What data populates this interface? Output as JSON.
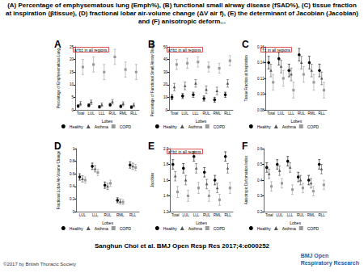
{
  "title": "(A) Percentage of emphysematous lung (Emph%), (B) functional small airway disease (fSAD%), (C) tissue fraction at inspiration (βtissue), (D) fractional lobar air-volume change (ΔV air f), (E) the determinant of Jacobian (Jacobian) and (F) anisotropic deform...",
  "citation": "Sanghun Choi et al. BMJ Open Resp Res 2017;4:e000252",
  "copyright": "©2017 by British Thoracic Society",
  "journal": [
    "BMJ Open",
    "Respiratory Research"
  ],
  "chart_data": [
    {
      "type": "scatter",
      "title": "A",
      "annotation": "a†b‡ in all regions",
      "x_label": "Lobes",
      "y_label": "Percentage of Emphysematous Lung",
      "categories": [
        "Total",
        "LUL",
        "LLL",
        "RUL",
        "RML",
        "RLL"
      ],
      "ylim": [
        0,
        25
      ],
      "yticks": [
        0,
        5,
        10,
        15,
        20,
        25
      ],
      "series": [
        {
          "name": "Healthy",
          "color": "#000000",
          "marker": "circle",
          "values": [
            1.5,
            1.8,
            1.2,
            2.0,
            1.4,
            1.1
          ],
          "errors": [
            0.5,
            0.6,
            0.5,
            0.6,
            0.5,
            0.5
          ]
        },
        {
          "name": "Asthma",
          "color": "#555555",
          "marker": "triangle",
          "values": [
            2.5,
            3.0,
            2.0,
            3.2,
            2.4,
            1.9
          ],
          "errors": [
            0.8,
            0.9,
            0.7,
            0.9,
            0.8,
            0.7
          ]
        },
        {
          "name": "COPD",
          "color": "#999999",
          "marker": "rect",
          "values": [
            17,
            18,
            15,
            21,
            16,
            15
          ],
          "errors": [
            3,
            3,
            3,
            3,
            3,
            3
          ]
        }
      ]
    },
    {
      "type": "scatter",
      "title": "B",
      "annotation": "a†b‡ in all regions",
      "x_label": "Lobes",
      "y_label": "Percentage of Functional Small Airway Disease",
      "categories": [
        "Total",
        "LUL",
        "LLL",
        "RUL",
        "RML",
        "RLL"
      ],
      "ylim": [
        0,
        50
      ],
      "yticks": [
        0,
        10,
        20,
        30,
        40,
        50
      ],
      "series": [
        {
          "name": "Healthy",
          "color": "#000000",
          "marker": "circle",
          "values": [
            10,
            11,
            12,
            9,
            8,
            12
          ],
          "errors": [
            2,
            2,
            2,
            2,
            2,
            2
          ]
        },
        {
          "name": "Asthma",
          "color": "#555555",
          "marker": "triangle",
          "values": [
            18,
            19,
            21,
            16,
            15,
            21
          ],
          "errors": [
            3,
            3,
            3,
            3,
            3,
            3
          ]
        },
        {
          "name": "COPD",
          "color": "#999999",
          "marker": "rect",
          "values": [
            36,
            37,
            38,
            34,
            33,
            39
          ],
          "errors": [
            4,
            4,
            4,
            4,
            4,
            4
          ]
        }
      ]
    },
    {
      "type": "scatter",
      "title": "C",
      "annotation": "†‡ in all regions",
      "x_label": "Lobes",
      "y_label": "Tissue Fraction at Inspiration",
      "categories": [
        "Total",
        "LUL",
        "LLL",
        "RUL",
        "RML",
        "RLL"
      ],
      "ylim": [
        0.08,
        0.16
      ],
      "yticks": [
        0.08,
        {
          "value": 0.1,
          "label": "0.10"
        },
        0.12,
        0.14,
        0.16
      ],
      "series": [
        {
          "name": "Healthy",
          "color": "#000000",
          "marker": "circle",
          "values": [
            0.14,
            0.145,
            0.13,
            0.15,
            0.14,
            0.13
          ],
          "errors": [
            0.008,
            0.008,
            0.008,
            0.008,
            0.008,
            0.008
          ]
        },
        {
          "name": "Asthma",
          "color": "#555555",
          "marker": "triangle",
          "values": [
            0.13,
            0.135,
            0.125,
            0.14,
            0.13,
            0.12
          ],
          "errors": [
            0.008,
            0.008,
            0.008,
            0.008,
            0.008,
            0.008
          ]
        },
        {
          "name": "COPD",
          "color": "#999999",
          "marker": "rect",
          "values": [
            0.115,
            0.12,
            0.105,
            0.125,
            0.115,
            0.105
          ],
          "errors": [
            0.01,
            0.01,
            0.01,
            0.01,
            0.01,
            0.01
          ]
        }
      ]
    },
    {
      "type": "scatter",
      "title": "D",
      "x_label": "Lobes",
      "y_label": "Fractional Lobar Air-Volume Change",
      "categories": [
        "LUL",
        "LLL",
        "RUL",
        "RML",
        "RLL"
      ],
      "ylim": [
        0,
        1
      ],
      "yticks": [
        0,
        0.2,
        0.4,
        0.6,
        0.8,
        1
      ],
      "series": [
        {
          "name": "Healthy",
          "color": "#000000",
          "marker": "circle",
          "values": [
            0.55,
            0.72,
            0.42,
            0.18,
            0.74
          ],
          "errors": [
            0.05,
            0.05,
            0.05,
            0.04,
            0.05
          ]
        },
        {
          "name": "Asthma",
          "color": "#555555",
          "marker": "triangle",
          "values": [
            0.52,
            0.68,
            0.4,
            0.16,
            0.72
          ],
          "errors": [
            0.05,
            0.05,
            0.05,
            0.04,
            0.05
          ]
        },
        {
          "name": "COPD",
          "color": "#999999",
          "marker": "rect",
          "values": [
            0.5,
            0.62,
            0.45,
            0.15,
            0.7
          ],
          "errors": [
            0.05,
            0.05,
            0.05,
            0.04,
            0.05
          ]
        }
      ]
    },
    {
      "type": "scatter",
      "title": "E",
      "annotation": "a†b‡ in all regions",
      "x_label": "Lobes",
      "y_label": "Jacobian",
      "categories": [
        "Total",
        "LUL",
        "LLL",
        "RUL",
        "RML",
        "RLL"
      ],
      "ylim": [
        1.2,
        2.0
      ],
      "yticks": [
        1.2,
        1.4,
        1.6,
        1.8,
        {
          "value": 2.0,
          "label": "2.0"
        }
      ],
      "series": [
        {
          "name": "Healthy",
          "color": "#000000",
          "marker": "circle",
          "values": [
            1.8,
            1.75,
            1.9,
            1.7,
            1.6,
            1.9
          ],
          "errors": [
            0.06,
            0.06,
            0.06,
            0.06,
            0.06,
            0.06
          ]
        },
        {
          "name": "Asthma",
          "color": "#555555",
          "marker": "triangle",
          "values": [
            1.65,
            1.6,
            1.75,
            1.55,
            1.5,
            1.75
          ],
          "errors": [
            0.06,
            0.06,
            0.06,
            0.06,
            0.06,
            0.06
          ]
        },
        {
          "name": "COPD",
          "color": "#999999",
          "marker": "rect",
          "values": [
            1.45,
            1.4,
            1.5,
            1.4,
            1.35,
            1.5
          ],
          "errors": [
            0.07,
            0.07,
            0.07,
            0.07,
            0.07,
            0.07
          ]
        }
      ]
    },
    {
      "type": "scatter",
      "title": "F",
      "x_label": "Lobes",
      "y_label": "Anisotropic Deformation Index",
      "categories": [
        "Total",
        "LUL",
        "LLL",
        "RUL",
        "RML",
        "RLL"
      ],
      "ylim": [
        0.2,
        0.6
      ],
      "yticks": [
        0.2,
        0.3,
        0.4,
        0.5,
        0.6
      ],
      "series": [
        {
          "name": "Healthy",
          "color": "#000000",
          "marker": "circle",
          "values": [
            0.48,
            0.5,
            0.52,
            0.42,
            0.4,
            0.5
          ],
          "errors": [
            0.03,
            0.03,
            0.03,
            0.03,
            0.03,
            0.03
          ]
        },
        {
          "name": "Asthma",
          "color": "#555555",
          "marker": "triangle",
          "values": [
            0.44,
            0.46,
            0.48,
            0.4,
            0.38,
            0.47
          ],
          "errors": [
            0.03,
            0.03,
            0.03,
            0.03,
            0.03,
            0.03
          ]
        },
        {
          "name": "COPD",
          "color": "#999999",
          "marker": "rect",
          "values": [
            0.36,
            0.38,
            0.34,
            0.35,
            0.33,
            0.37
          ],
          "errors": [
            0.03,
            0.03,
            0.03,
            0.03,
            0.03,
            0.03
          ]
        }
      ]
    }
  ]
}
